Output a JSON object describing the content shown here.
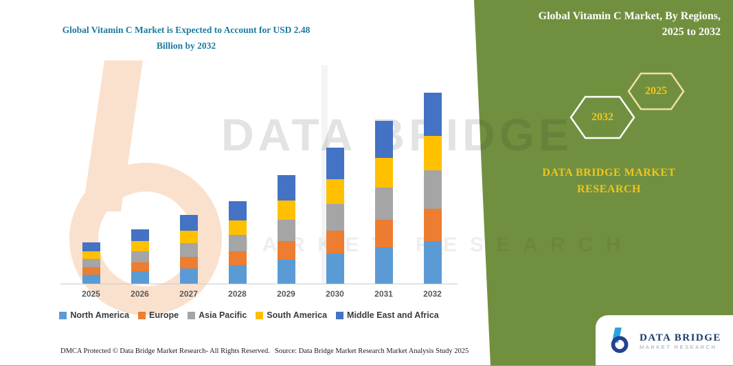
{
  "chart_data": {
    "type": "bar",
    "stacked": true,
    "title": "Global Vitamin C Market is Expected to Account for USD 2.48 Billion by 2032",
    "unit": "USD Billion",
    "categories": [
      "2025",
      "2026",
      "2027",
      "2028",
      "2029",
      "2030",
      "2031",
      "2032"
    ],
    "series": [
      {
        "name": "North America",
        "color": "#5B9BD5",
        "values": [
          0.12,
          0.16,
          0.2,
          0.24,
          0.31,
          0.39,
          0.47,
          0.55
        ]
      },
      {
        "name": "Europe",
        "color": "#ED7D31",
        "values": [
          0.09,
          0.12,
          0.15,
          0.18,
          0.24,
          0.3,
          0.36,
          0.42
        ]
      },
      {
        "name": "Asia Pacific",
        "color": "#A5A5A5",
        "values": [
          0.11,
          0.14,
          0.18,
          0.21,
          0.28,
          0.35,
          0.42,
          0.5
        ]
      },
      {
        "name": "South America",
        "color": "#FFC000",
        "values": [
          0.1,
          0.13,
          0.16,
          0.19,
          0.25,
          0.32,
          0.38,
          0.45
        ]
      },
      {
        "name": "Middle East and Africa",
        "color": "#4472C4",
        "values": [
          0.12,
          0.16,
          0.2,
          0.25,
          0.33,
          0.41,
          0.49,
          0.56
        ]
      }
    ],
    "legend_position": "bottom",
    "grid": false,
    "ylim": [
      0,
      2.6
    ]
  },
  "left": {
    "title_line1": "Global Vitamin C Market is Expected to Account for USD 2.48",
    "title_line2": "Billion by 2032",
    "title_color": "#1B7A9E",
    "footer_left": "DMCA Protected © Data Bridge Market Research-  All Rights Reserved.",
    "footer_right": "Source: Data Bridge Market Research  Market Analysis Study 2025"
  },
  "right_panel": {
    "bg_color": "#71903F",
    "accent_yellow": "#F0C41E",
    "title_line1": "Global Vitamin C Market, By Regions,",
    "title_line2": "2025 to 2032",
    "hex_left_label": "2032",
    "hex_right_label": "2025",
    "brand_line1": "DATA BRIDGE MARKET",
    "brand_line2": "RESEARCH",
    "logo_text": "DATA BRIDGE",
    "logo_subtext": "MARKET RESEARCH"
  },
  "watermark": {
    "line1": "DATA BRIDGE",
    "line2": "MARKET RESEARCH"
  }
}
